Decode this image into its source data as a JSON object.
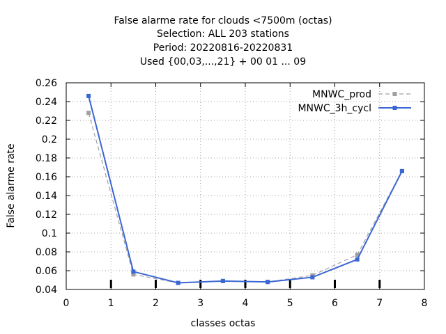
{
  "chart_data": {
    "type": "line",
    "title_lines": [
      "False alarme rate  for clouds <7500m (octas)",
      "Selection: ALL    203 stations",
      "Period: 20220816-20220831",
      "Used {00,03,...,21} + 00 01 ... 09"
    ],
    "xlabel": "classes octas",
    "ylabel": "False alarme rate",
    "xlim": [
      0,
      8
    ],
    "ylim": [
      0.04,
      0.26
    ],
    "xticks": [
      0,
      1,
      2,
      3,
      4,
      5,
      6,
      7,
      8
    ],
    "xtick_labels": [
      "0",
      "1",
      "2",
      "3",
      "4",
      "5",
      "6",
      "7",
      "8"
    ],
    "yticks": [
      0.04,
      0.06,
      0.08,
      0.1,
      0.12,
      0.14,
      0.16,
      0.18,
      0.2,
      0.22,
      0.24,
      0.26
    ],
    "ytick_labels": [
      "0.04",
      "0.06",
      "0.08",
      "0.1",
      "0.12",
      "0.14",
      "0.16",
      "0.18",
      "0.2",
      "0.22",
      "0.24",
      "0.26"
    ],
    "grid": true,
    "legend_position": "top-right",
    "x": [
      0.5,
      1.5,
      2.5,
      3.5,
      4.5,
      5.5,
      6.5,
      7.5
    ],
    "series": [
      {
        "name": "MNWC_prod",
        "values": [
          0.228,
          0.056,
          0.047,
          0.049,
          0.048,
          0.055,
          0.077,
          0.166
        ],
        "color": "#a0a0a0",
        "dashed": true
      },
      {
        "name": "MNWC_3h_cycl",
        "values": [
          0.246,
          0.059,
          0.047,
          0.049,
          0.048,
          0.053,
          0.072,
          0.166
        ],
        "color": "#3a66d4",
        "dashed": false
      }
    ]
  }
}
